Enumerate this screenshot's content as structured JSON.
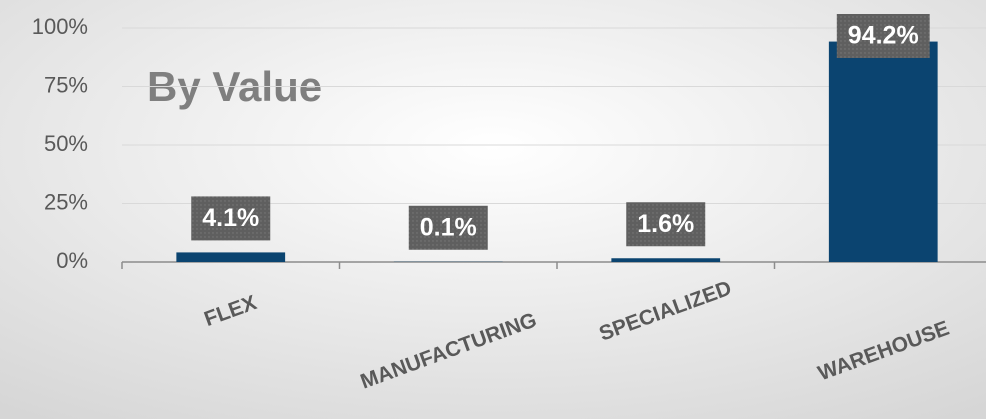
{
  "chart_data": {
    "type": "bar",
    "title": "By Value",
    "categories": [
      "FLEX",
      "MANUFACTURING",
      "SPECIALIZED",
      "WAREHOUSE"
    ],
    "values": [
      4.1,
      0.1,
      1.6,
      94.2
    ],
    "value_labels": [
      "4.1%",
      "0.1%",
      "1.6%",
      "94.2%"
    ],
    "color": "#0b4470",
    "ylim": [
      0,
      100
    ],
    "yticks": [
      {
        "value": 0,
        "label": "0%"
      },
      {
        "value": 25,
        "label": "25%"
      },
      {
        "value": 50,
        "label": "50%"
      },
      {
        "value": 75,
        "label": "75%"
      },
      {
        "value": 100,
        "label": "100%"
      }
    ],
    "grid": true
  }
}
